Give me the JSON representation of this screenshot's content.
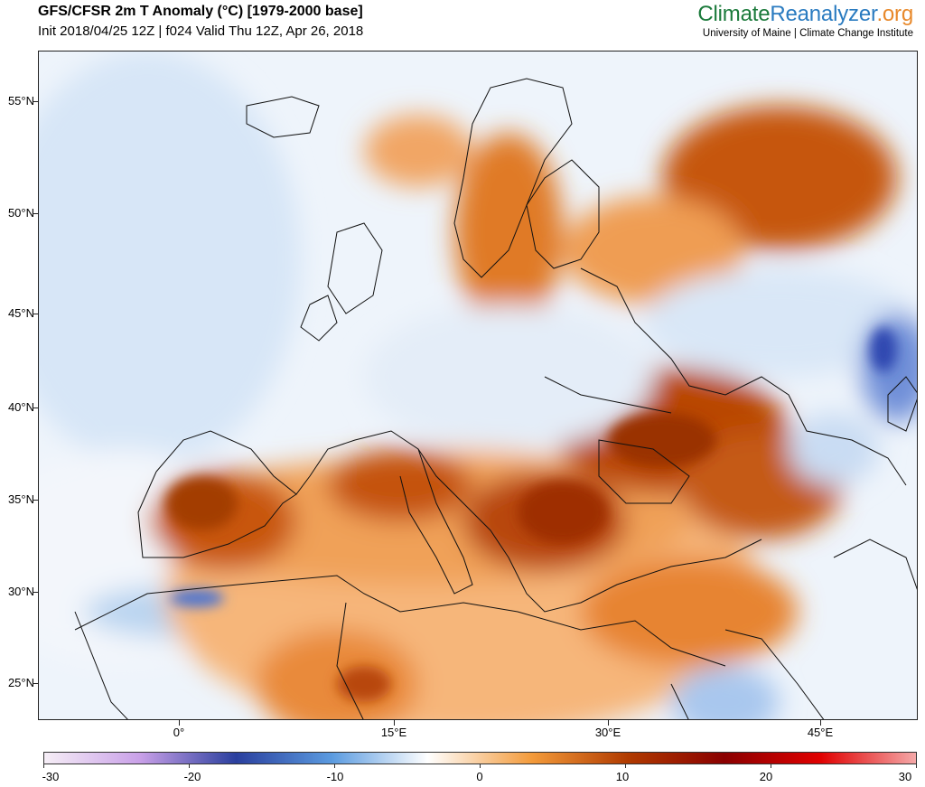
{
  "header": {
    "title": "GFS/CFSR 2m T Anomaly (°C) [1979-2000 base]",
    "subtitle": "Init 2018/04/25 12Z | f024 Valid Thu 12Z, Apr 26, 2018"
  },
  "brand": {
    "part1": "Climate",
    "part2": "Reanalyzer",
    "part3": ".org",
    "affiliation": "University of Maine | Climate Change Institute",
    "colors": {
      "part1": "#1b7a3b",
      "part2": "#2a7bc0",
      "part3": "#e8892b"
    }
  },
  "map": {
    "lat_labels": [
      "55°N",
      "50°N",
      "45°N",
      "40°N",
      "35°N",
      "30°N",
      "25°N"
    ],
    "lon_labels": [
      "0°",
      "15°E",
      "30°E",
      "45°E"
    ]
  },
  "colorbar": {
    "labels": [
      "-30",
      "-20",
      "-10",
      "0",
      "10",
      "20",
      "30"
    ],
    "colors": [
      "#f6eef6",
      "#c9a0e8",
      "#2a3f9e",
      "#5b9be0",
      "#ffffff",
      "#f39a3a",
      "#b03a00",
      "#8a0000",
      "#e00000",
      "#f5a8a8"
    ]
  }
}
